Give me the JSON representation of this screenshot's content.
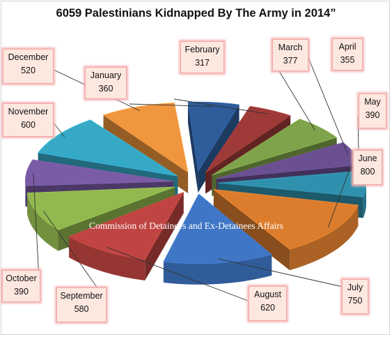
{
  "chart_data": {
    "type": "pie",
    "title": "6059 Palestinians Kidnapped By The Army in 2014”",
    "watermark": "Commission of Detainees and Ex-Detainees Affairs",
    "slices": [
      {
        "month": "January",
        "value": "360",
        "n": 360,
        "color": "#2f5d9b"
      },
      {
        "month": "February",
        "value": "317",
        "n": 317,
        "color": "#9e3a38"
      },
      {
        "month": "March",
        "value": "377",
        "n": 377,
        "color": "#7fa34a"
      },
      {
        "month": "April",
        "value": "355",
        "n": 355,
        "color": "#6a4f91"
      },
      {
        "month": "May",
        "value": "390",
        "n": 390,
        "color": "#2f91ad"
      },
      {
        "month": "June",
        "value": "800",
        "n": 800,
        "color": "#dc7d2e"
      },
      {
        "month": "July",
        "value": "750",
        "n": 750,
        "color": "#3f76c5"
      },
      {
        "month": "August",
        "value": "620",
        "n": 620,
        "color": "#c04542"
      },
      {
        "month": "September",
        "value": "580",
        "n": 580,
        "color": "#92b94f"
      },
      {
        "month": "October",
        "value": "390",
        "n": 390,
        "color": "#7a5ba6"
      },
      {
        "month": "November",
        "value": "600",
        "n": 600,
        "color": "#35a9c6"
      },
      {
        "month": "December",
        "value": "520",
        "n": 520,
        "color": "#f0963e"
      }
    ]
  }
}
